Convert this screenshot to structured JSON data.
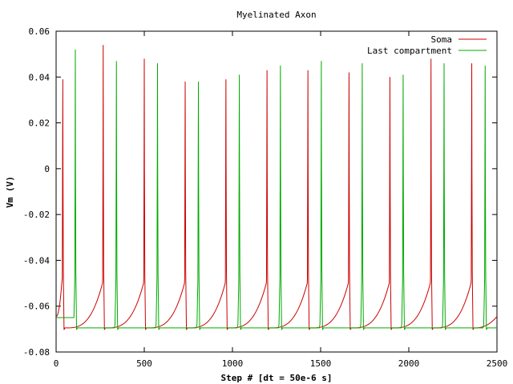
{
  "chart_data": {
    "type": "line",
    "title": "Myelinated Axon",
    "xlabel": "Step # [dt = 50e-6 s]",
    "ylabel": "Vm (V)",
    "xlim": [
      0,
      2500
    ],
    "ylim": [
      -0.08,
      0.06
    ],
    "x_ticks": [
      0,
      500,
      1000,
      1500,
      2000,
      2500
    ],
    "y_ticks": [
      -0.08,
      -0.06,
      -0.04,
      -0.02,
      0,
      0.02,
      0.04,
      0.06
    ],
    "x_tick_labels": [
      "0",
      "500",
      "1000",
      "1500",
      "2000",
      "2500"
    ],
    "y_tick_labels": [
      "-0.08",
      "-0.06",
      "-0.04",
      "-0.02",
      "0",
      "0.02",
      "0.04",
      "0.06"
    ],
    "grid": false,
    "legend_position": "top-right",
    "series": [
      {
        "name": "Soma",
        "color": "#cc0000",
        "resting_potential": -0.0695,
        "start_potential": -0.0645,
        "threshold_potential": -0.05,
        "spikes": [
          {
            "t": 38,
            "peak": 0.039
          },
          {
            "t": 267,
            "peak": 0.054
          },
          {
            "t": 500,
            "peak": 0.048
          },
          {
            "t": 732,
            "peak": 0.038
          },
          {
            "t": 963,
            "peak": 0.039
          },
          {
            "t": 1196,
            "peak": 0.043
          },
          {
            "t": 1428,
            "peak": 0.043
          },
          {
            "t": 1661,
            "peak": 0.042
          },
          {
            "t": 1893,
            "peak": 0.04
          },
          {
            "t": 2126,
            "peak": 0.048
          },
          {
            "t": 2357,
            "peak": 0.046
          }
        ],
        "end_value": -0.0645
      },
      {
        "name": "Last compartment",
        "color": "#00aa00",
        "resting_potential": -0.0695,
        "start_potential": -0.065,
        "spikes": [
          {
            "t": 109,
            "peak": 0.052
          },
          {
            "t": 342,
            "peak": 0.047
          },
          {
            "t": 575,
            "peak": 0.046
          },
          {
            "t": 807,
            "peak": 0.038
          },
          {
            "t": 1039,
            "peak": 0.041
          },
          {
            "t": 1272,
            "peak": 0.045
          },
          {
            "t": 1504,
            "peak": 0.047
          },
          {
            "t": 1736,
            "peak": 0.046
          },
          {
            "t": 1968,
            "peak": 0.041
          },
          {
            "t": 2200,
            "peak": 0.046
          },
          {
            "t": 2433,
            "peak": 0.045
          }
        ],
        "end_value": -0.0695
      }
    ]
  }
}
